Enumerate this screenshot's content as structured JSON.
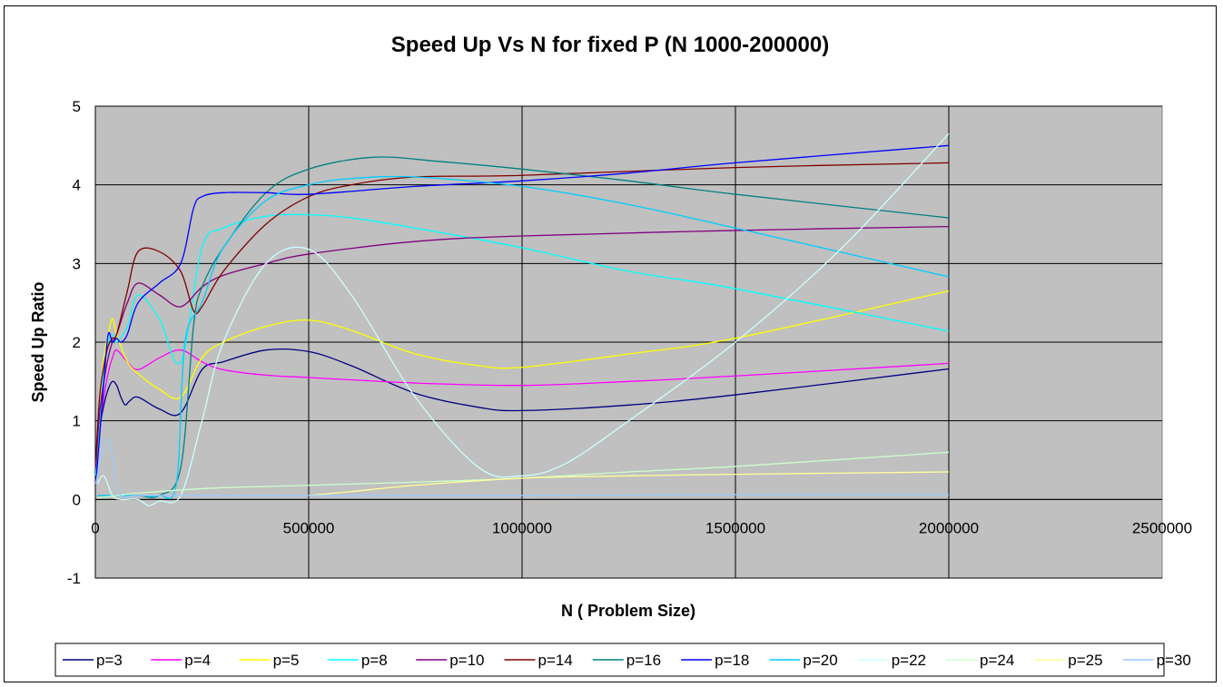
{
  "chart_data": {
    "type": "line",
    "title": "Speed Up Vs N for fixed P (N 1000-200000)",
    "xlabel": "N ( Problem Size)",
    "ylabel": "Speed Up Ratio",
    "xlim": [
      0,
      2500000
    ],
    "ylim": [
      -1,
      5
    ],
    "xticks": [
      "0",
      "500000",
      "1000000",
      "1500000",
      "2000000",
      "2500000"
    ],
    "yticks": [
      "-1",
      "0",
      "1",
      "2",
      "3",
      "4",
      "5"
    ],
    "grid": true,
    "background": "#C0C0C0",
    "legend_position": "bottom",
    "series": [
      {
        "name": "p=3",
        "color": "#000080",
        "points": [
          [
            1000,
            0.2
          ],
          [
            5000,
            0.6
          ],
          [
            10000,
            0.9
          ],
          [
            20000,
            1.2
          ],
          [
            30000,
            1.4
          ],
          [
            40000,
            1.5
          ],
          [
            50000,
            1.45
          ],
          [
            60000,
            1.3
          ],
          [
            70000,
            1.2
          ],
          [
            80000,
            1.25
          ],
          [
            100000,
            1.3
          ],
          [
            150000,
            1.15
          ],
          [
            200000,
            1.1
          ],
          [
            250000,
            1.65
          ],
          [
            300000,
            1.75
          ],
          [
            400000,
            1.9
          ],
          [
            500000,
            1.88
          ],
          [
            600000,
            1.7
          ],
          [
            750000,
            1.35
          ],
          [
            900000,
            1.17
          ],
          [
            1000000,
            1.13
          ],
          [
            1250000,
            1.2
          ],
          [
            1500000,
            1.33
          ],
          [
            2000000,
            1.66
          ]
        ]
      },
      {
        "name": "p=4",
        "color": "#FF00FF",
        "points": [
          [
            1000,
            0.3
          ],
          [
            10000,
            0.9
          ],
          [
            20000,
            1.3
          ],
          [
            30000,
            1.6
          ],
          [
            40000,
            1.8
          ],
          [
            50000,
            1.9
          ],
          [
            75000,
            1.75
          ],
          [
            100000,
            1.65
          ],
          [
            150000,
            1.8
          ],
          [
            200000,
            1.9
          ],
          [
            250000,
            1.75
          ],
          [
            300000,
            1.65
          ],
          [
            400000,
            1.58
          ],
          [
            500000,
            1.55
          ],
          [
            750000,
            1.48
          ],
          [
            1000000,
            1.45
          ],
          [
            1250000,
            1.5
          ],
          [
            1500000,
            1.57
          ],
          [
            2000000,
            1.73
          ]
        ]
      },
      {
        "name": "p=5",
        "color": "#FFFF00",
        "points": [
          [
            1000,
            0.4
          ],
          [
            10000,
            1.2
          ],
          [
            20000,
            1.8
          ],
          [
            30000,
            2.1
          ],
          [
            40000,
            2.3
          ],
          [
            50000,
            2.1
          ],
          [
            75000,
            1.75
          ],
          [
            100000,
            1.6
          ],
          [
            150000,
            1.4
          ],
          [
            200000,
            1.3
          ],
          [
            250000,
            1.8
          ],
          [
            300000,
            2.0
          ],
          [
            400000,
            2.2
          ],
          [
            500000,
            2.28
          ],
          [
            600000,
            2.15
          ],
          [
            750000,
            1.85
          ],
          [
            900000,
            1.7
          ],
          [
            1000000,
            1.68
          ],
          [
            1250000,
            1.85
          ],
          [
            1500000,
            2.05
          ],
          [
            2000000,
            2.65
          ]
        ]
      },
      {
        "name": "p=8",
        "color": "#00FFFF",
        "points": [
          [
            1000,
            0.3
          ],
          [
            10000,
            1.0
          ],
          [
            20000,
            1.6
          ],
          [
            30000,
            2.0
          ],
          [
            40000,
            2.1
          ],
          [
            50000,
            2.0
          ],
          [
            75000,
            2.2
          ],
          [
            100000,
            2.6
          ],
          [
            150000,
            2.3
          ],
          [
            200000,
            1.75
          ],
          [
            250000,
            3.2
          ],
          [
            300000,
            3.45
          ],
          [
            400000,
            3.6
          ],
          [
            500000,
            3.62
          ],
          [
            600000,
            3.58
          ],
          [
            750000,
            3.45
          ],
          [
            1000000,
            3.2
          ],
          [
            1250000,
            2.9
          ],
          [
            1500000,
            2.68
          ],
          [
            2000000,
            2.14
          ]
        ]
      },
      {
        "name": "p=10",
        "color": "#800080",
        "points": [
          [
            1000,
            0.4
          ],
          [
            10000,
            1.1
          ],
          [
            20000,
            1.5
          ],
          [
            30000,
            1.8
          ],
          [
            40000,
            2.0
          ],
          [
            50000,
            2.1
          ],
          [
            75000,
            2.5
          ],
          [
            100000,
            2.75
          ],
          [
            150000,
            2.6
          ],
          [
            200000,
            2.45
          ],
          [
            250000,
            2.7
          ],
          [
            300000,
            2.85
          ],
          [
            400000,
            3.0
          ],
          [
            500000,
            3.12
          ],
          [
            750000,
            3.28
          ],
          [
            1000000,
            3.35
          ],
          [
            1500000,
            3.42
          ],
          [
            2000000,
            3.47
          ]
        ]
      },
      {
        "name": "p=14",
        "color": "#800000",
        "points": [
          [
            1000,
            0.5
          ],
          [
            10000,
            1.3
          ],
          [
            20000,
            1.7
          ],
          [
            30000,
            1.95
          ],
          [
            40000,
            2.05
          ],
          [
            50000,
            2.1
          ],
          [
            75000,
            2.65
          ],
          [
            100000,
            3.15
          ],
          [
            150000,
            3.15
          ],
          [
            200000,
            2.9
          ],
          [
            230000,
            2.4
          ],
          [
            250000,
            2.45
          ],
          [
            300000,
            2.9
          ],
          [
            400000,
            3.5
          ],
          [
            500000,
            3.85
          ],
          [
            600000,
            4.0
          ],
          [
            750000,
            4.1
          ],
          [
            1000000,
            4.12
          ],
          [
            1500000,
            4.22
          ],
          [
            2000000,
            4.28
          ]
        ]
      },
      {
        "name": "p=16",
        "color": "#008080",
        "points": [
          [
            5000,
            0.05
          ],
          [
            20000,
            0.05
          ],
          [
            50000,
            0.05
          ],
          [
            100000,
            0.05
          ],
          [
            150000,
            0.05
          ],
          [
            200000,
            0.4
          ],
          [
            230000,
            2.2
          ],
          [
            250000,
            2.7
          ],
          [
            300000,
            3.2
          ],
          [
            400000,
            3.9
          ],
          [
            500000,
            4.2
          ],
          [
            650000,
            4.35
          ],
          [
            800000,
            4.3
          ],
          [
            1000000,
            4.2
          ],
          [
            1250000,
            4.05
          ],
          [
            1500000,
            3.88
          ],
          [
            2000000,
            3.58
          ]
        ]
      },
      {
        "name": "p=18",
        "color": "#0000FF",
        "points": [
          [
            1000,
            0.2
          ],
          [
            10000,
            0.8
          ],
          [
            20000,
            1.5
          ],
          [
            30000,
            2.1
          ],
          [
            40000,
            2.0
          ],
          [
            50000,
            2.05
          ],
          [
            60000,
            2.0
          ],
          [
            75000,
            2.1
          ],
          [
            100000,
            2.5
          ],
          [
            150000,
            2.75
          ],
          [
            200000,
            3.0
          ],
          [
            230000,
            3.7
          ],
          [
            250000,
            3.85
          ],
          [
            300000,
            3.9
          ],
          [
            400000,
            3.9
          ],
          [
            500000,
            3.88
          ],
          [
            750000,
            3.98
          ],
          [
            1000000,
            4.05
          ],
          [
            1250000,
            4.15
          ],
          [
            1500000,
            4.28
          ],
          [
            2000000,
            4.5
          ]
        ]
      },
      {
        "name": "p=20",
        "color": "#00CCFF",
        "points": [
          [
            5000,
            0.05
          ],
          [
            20000,
            0.05
          ],
          [
            50000,
            0.05
          ],
          [
            100000,
            0.05
          ],
          [
            150000,
            0.05
          ],
          [
            190000,
            0.2
          ],
          [
            210000,
            2.0
          ],
          [
            250000,
            2.5
          ],
          [
            300000,
            3.2
          ],
          [
            400000,
            3.8
          ],
          [
            500000,
            4.0
          ],
          [
            600000,
            4.08
          ],
          [
            750000,
            4.1
          ],
          [
            1000000,
            3.98
          ],
          [
            1250000,
            3.75
          ],
          [
            1500000,
            3.45
          ],
          [
            2000000,
            2.83
          ]
        ]
      },
      {
        "name": "p=22",
        "color": "#CCFFFF",
        "points": [
          [
            5000,
            0.2
          ],
          [
            20000,
            0.3
          ],
          [
            40000,
            0.05
          ],
          [
            60000,
            0.0
          ],
          [
            100000,
            0.0
          ],
          [
            125000,
            -0.08
          ],
          [
            150000,
            -0.02
          ],
          [
            200000,
            0.05
          ],
          [
            250000,
            1.0
          ],
          [
            300000,
            2.0
          ],
          [
            400000,
            3.0
          ],
          [
            500000,
            3.18
          ],
          [
            600000,
            2.6
          ],
          [
            750000,
            1.3
          ],
          [
            900000,
            0.4
          ],
          [
            1000000,
            0.3
          ],
          [
            1100000,
            0.45
          ],
          [
            1250000,
            1.0
          ],
          [
            1500000,
            2.0
          ],
          [
            1750000,
            3.2
          ],
          [
            2000000,
            4.65
          ]
        ]
      },
      {
        "name": "p=24",
        "color": "#CCFFCC",
        "points": [
          [
            5000,
            0.02
          ],
          [
            50000,
            0.05
          ],
          [
            100000,
            0.08
          ],
          [
            200000,
            0.12
          ],
          [
            300000,
            0.15
          ],
          [
            500000,
            0.18
          ],
          [
            750000,
            0.22
          ],
          [
            1000000,
            0.27
          ],
          [
            1250000,
            0.35
          ],
          [
            1500000,
            0.42
          ],
          [
            2000000,
            0.6
          ]
        ]
      },
      {
        "name": "p=25",
        "color": "#FFFF99",
        "points": [
          [
            500000,
            0.05
          ],
          [
            600000,
            0.1
          ],
          [
            750000,
            0.18
          ],
          [
            1000000,
            0.27
          ],
          [
            1250000,
            0.3
          ],
          [
            1500000,
            0.32
          ],
          [
            2000000,
            0.35
          ]
        ]
      },
      {
        "name": "p=30",
        "color": "#99CCFF",
        "points": [
          [
            1000,
            0.2
          ],
          [
            20000,
            0.7
          ],
          [
            35000,
            0.72
          ],
          [
            45000,
            0.3
          ],
          [
            60000,
            0.05
          ],
          [
            100000,
            0.05
          ],
          [
            200000,
            0.05
          ],
          [
            300000,
            0.05
          ],
          [
            400000,
            0.05
          ],
          [
            600000,
            0.05
          ],
          [
            1000000,
            0.05
          ],
          [
            1500000,
            0.06
          ],
          [
            2000000,
            0.06
          ]
        ]
      }
    ]
  }
}
